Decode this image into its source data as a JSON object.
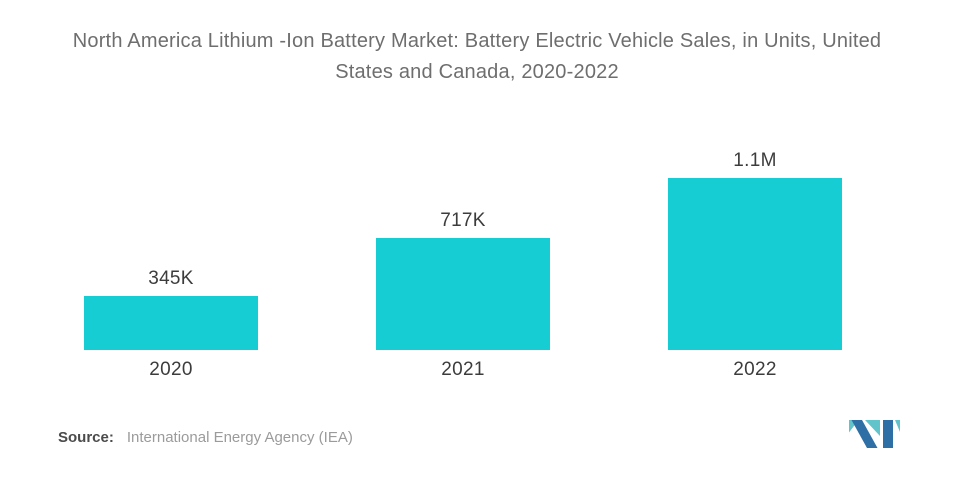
{
  "title": "North America Lithium -Ion Battery Market: Battery Electric Vehicle Sales, in Units, United\nStates and Canada, 2020-2022",
  "chart_data": {
    "type": "bar",
    "title": "North America Lithium -Ion Battery Market: Battery Electric Vehicle Sales, in Units, United States and Canada, 2020-2022",
    "categories": [
      "2020",
      "2021",
      "2022"
    ],
    "values": [
      345000,
      717000,
      1100000
    ],
    "value_labels": [
      "345K",
      "717K",
      "1.1M"
    ],
    "xlabel": "",
    "ylabel": "",
    "ylim": [
      0,
      1100000
    ],
    "grid": false,
    "legend": "none",
    "data_labels_position": "above-bar",
    "bar_color": "#16CDD3"
  },
  "source": {
    "label": "Source:",
    "text": "International Energy Agency (IEA)"
  },
  "logo": {
    "name": "mordor-intelligence-logo",
    "teal": "#62C4CB",
    "blue": "#2E6FA6"
  },
  "colors": {
    "background": "#ffffff",
    "title_text": "#6e6e6e",
    "axis_label_text": "#3c3c3c",
    "source_label_text": "#4b4b4b",
    "source_value_text": "#9b9b9b"
  }
}
